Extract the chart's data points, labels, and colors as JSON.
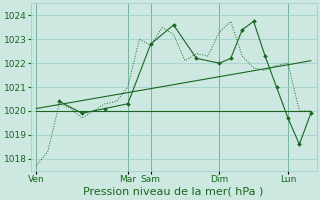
{
  "xlabel": "Pression niveau de la mer( hPa )",
  "bg_color": "#cce8e0",
  "grid_color": "#99cccc",
  "line_color": "#1a6620",
  "ylim": [
    1017.5,
    1024.5
  ],
  "yticks": [
    1018,
    1019,
    1020,
    1021,
    1022,
    1023,
    1024
  ],
  "day_labels": [
    "Ven",
    "Mar",
    "Sam",
    "Dim",
    "Lun"
  ],
  "day_positions": [
    0.5,
    8.5,
    10.5,
    16.5,
    22.5
  ],
  "xlim": [
    0,
    25
  ],
  "series_dot_x": [
    0.5,
    1.5,
    2.5,
    3.5,
    4.5,
    5.5,
    6.5,
    7.5,
    8.5,
    9.5,
    10.5,
    11.5,
    12.5,
    13.5,
    14.5,
    15.5,
    16.5,
    17.5,
    18.5,
    19.5,
    20.5,
    21.5,
    22.5,
    23.5,
    24.5
  ],
  "series_dot_y": [
    1017.7,
    1018.3,
    1020.3,
    1020.1,
    1019.7,
    1020.0,
    1020.3,
    1020.4,
    1021.0,
    1023.0,
    1022.75,
    1023.5,
    1023.2,
    1022.1,
    1022.4,
    1022.3,
    1023.3,
    1023.75,
    1022.3,
    1021.8,
    1021.7,
    1021.9,
    1022.0,
    1020.0,
    1020.0
  ],
  "series_marker_x": [
    2.5,
    4.5,
    6.5,
    8.5,
    10.5,
    12.5,
    14.5,
    16.5,
    17.5,
    18.5,
    19.5,
    20.5,
    21.5,
    22.5,
    23.5,
    24.5
  ],
  "series_marker_y": [
    1020.4,
    1019.9,
    1020.1,
    1020.3,
    1022.8,
    1023.6,
    1022.2,
    1022.0,
    1022.2,
    1023.4,
    1023.75,
    1022.3,
    1021.0,
    1019.7,
    1018.6,
    1019.9
  ],
  "series_flat_x": [
    0.5,
    8.5,
    10.5,
    16.5,
    22.5,
    24.5
  ],
  "series_flat_y": [
    1020.0,
    1020.0,
    1020.0,
    1020.0,
    1020.0,
    1020.0
  ],
  "series_trend_x": [
    0.5,
    24.5
  ],
  "series_trend_y": [
    1020.1,
    1022.1
  ],
  "xlabel_fontsize": 8,
  "tick_fontsize": 6.5
}
